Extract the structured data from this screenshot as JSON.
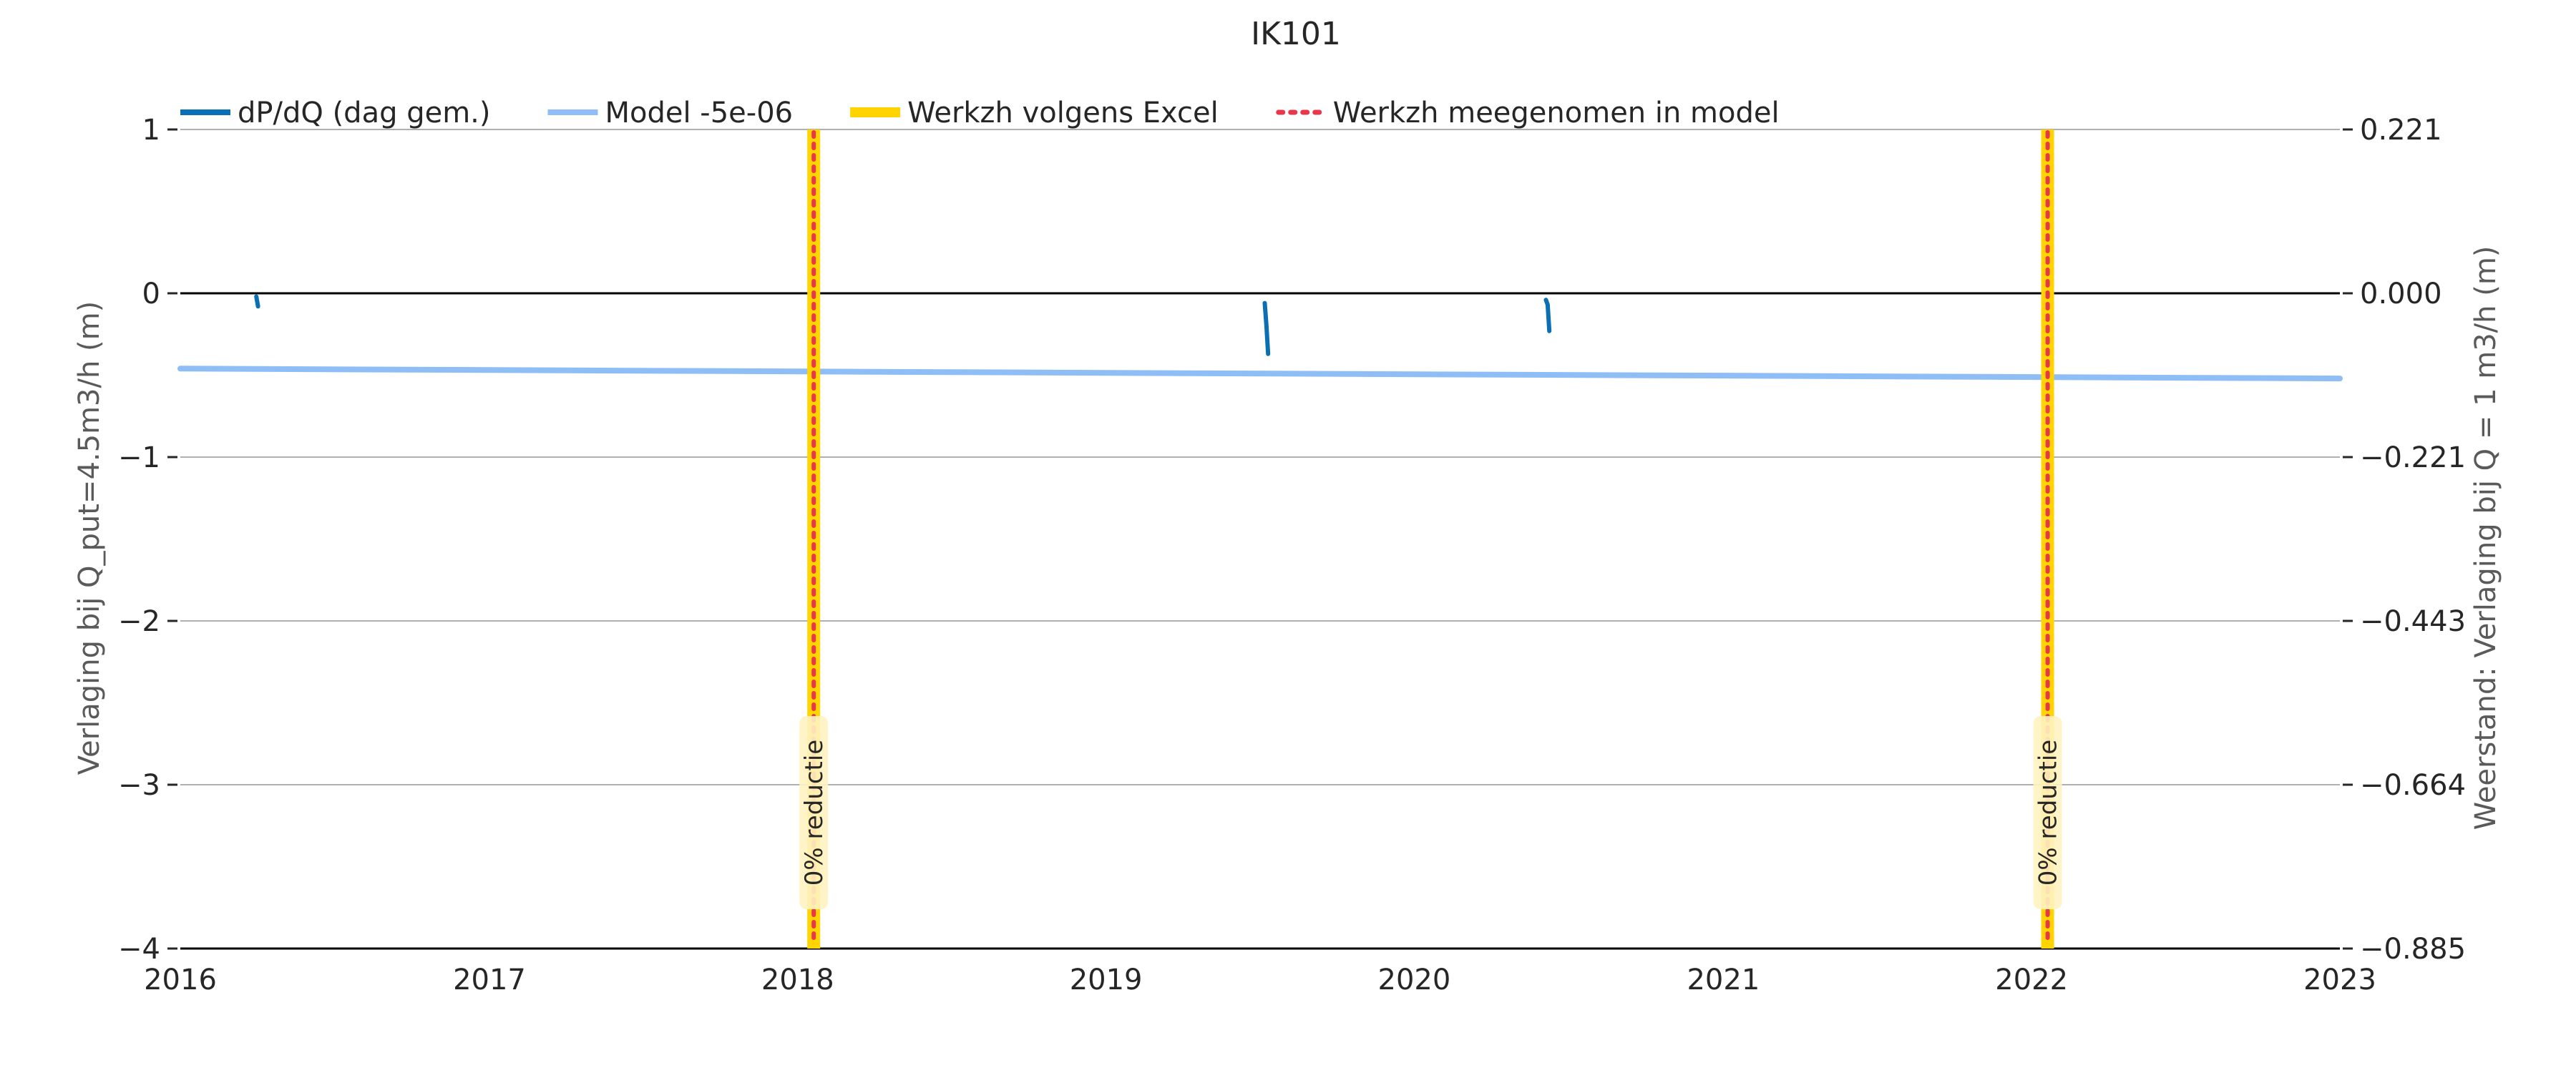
{
  "chart_data": {
    "type": "line",
    "title": "IK101",
    "ylabel_left": "Verlaging bij Q_put=4.5m3/h (m)",
    "ylabel_right": "Weerstand: Verlaging bij Q = 1 m3/h (m)",
    "xlabel": "",
    "x_is_date": true,
    "xlim": [
      "2016-01-01",
      "2023-01-01"
    ],
    "ylim_left": [
      -4,
      1
    ],
    "ylim_right": [
      -0.885,
      0.221
    ],
    "x_ticks": [
      "2016",
      "2017",
      "2018",
      "2019",
      "2020",
      "2021",
      "2022",
      "2023"
    ],
    "y_ticks_left": [
      1,
      0,
      -1,
      -2,
      -3,
      -4
    ],
    "y_tick_labels_left": [
      "1",
      "0",
      "−1",
      "−2",
      "−3",
      "−4"
    ],
    "y_tick_labels_right": [
      "0.221",
      "0.000",
      "−0.221",
      "−0.443",
      "−0.664",
      "−0.885"
    ],
    "grid": true,
    "legend_position": "top",
    "legend": [
      {
        "label": "dP/dQ (dag gem.)",
        "style": "line",
        "color": "#0b6fb4"
      },
      {
        "label": "Model -5e-06",
        "style": "line",
        "color": "#8fbef6"
      },
      {
        "label": "Werkzh volgens Excel",
        "style": "thick",
        "color": "#ffd400"
      },
      {
        "label": "Werkzh meegenomen in model",
        "style": "dotted",
        "color": "#e8374a"
      }
    ],
    "series": [
      {
        "name": "dP/dQ (dag gem.)",
        "color": "#0b6fb4",
        "segments": [
          [
            [
              "2016-03-31",
              -0.02
            ],
            [
              "2016-04-02",
              -0.08
            ]
          ],
          [
            [
              "2019-07-08",
              -0.06
            ],
            [
              "2019-07-10",
              -0.2
            ],
            [
              "2019-07-12",
              -0.37
            ]
          ],
          [
            [
              "2020-06-05",
              -0.04
            ],
            [
              "2020-06-07",
              -0.07
            ],
            [
              "2020-06-09",
              -0.23
            ]
          ]
        ]
      },
      {
        "name": "Model -5e-06",
        "color": "#8fbef6",
        "points": [
          [
            "2016-01-01",
            -0.46
          ],
          [
            "2023-01-01",
            -0.52
          ]
        ]
      }
    ],
    "events": [
      {
        "date": "2018-01-20",
        "label": "0% reductie"
      },
      {
        "date": "2022-01-20",
        "label": "0% reductie"
      }
    ],
    "event_color_excel": "#ffd400",
    "event_color_model": "#e8374a",
    "zero_line_color": "#000000",
    "grid_color": "#b0b0b0"
  }
}
